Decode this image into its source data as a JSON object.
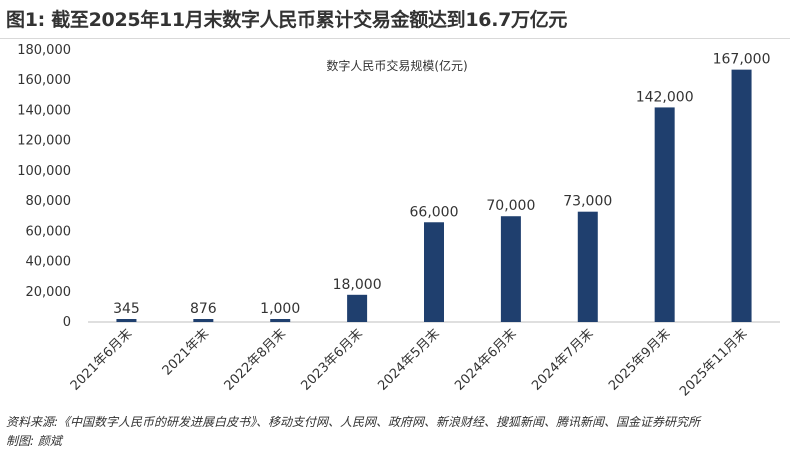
{
  "figure": {
    "title": "图1: 截至2025年11月末数字人民币累计交易金额达到16.7万亿元",
    "source": "资料来源:《中国数字人民币的研发进展白皮书》、移动支付网、人民网、政府网、新浪财经、搜狐新闻、腾讯新闻、国金证券研究所",
    "author": "制图: 颜斌"
  },
  "chart_data": {
    "type": "bar",
    "title": "",
    "xlabel": "",
    "ylabel": "",
    "legend_position": "top-center",
    "grid": false,
    "ylim": [
      0,
      180000
    ],
    "yticks": [
      "0",
      "20,000",
      "40,000",
      "60,000",
      "80,000",
      "100,000",
      "120,000",
      "140,000",
      "160,000",
      "180,000"
    ],
    "categories": [
      "2021年6月末",
      "2021年末",
      "2022年8月末",
      "2023年6月末",
      "2024年5月末",
      "2024年6月末",
      "2024年7月末",
      "2025年9月末",
      "2025年11月末"
    ],
    "series": [
      {
        "name": "数字人民币交易规模(亿元)",
        "color": "#1f3f6e",
        "values": [
          345,
          876,
          1000,
          18000,
          66000,
          70000,
          73000,
          142000,
          167000
        ],
        "labels": [
          "345",
          "876",
          "1,000",
          "18,000",
          "66,000",
          "70,000",
          "73,000",
          "142,000",
          "167,000"
        ]
      }
    ]
  }
}
